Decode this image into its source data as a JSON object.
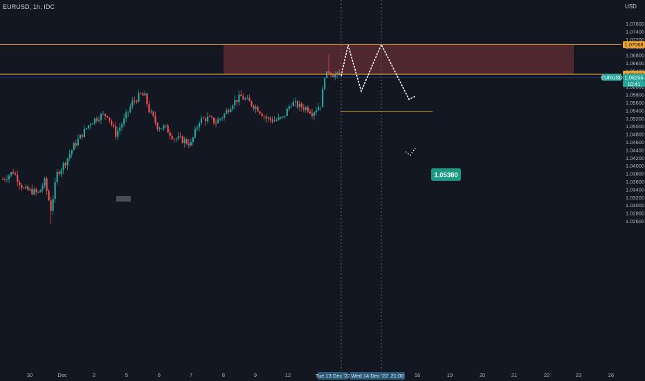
{
  "header": {
    "symbol_label": "EURUSD, 1h, IDC",
    "currency": "USD"
  },
  "chart_data": {
    "type": "candlestick",
    "symbol": "EURUSD",
    "interval": "1h",
    "source": "IDC",
    "ylim": [
      1.0255,
      1.0785
    ],
    "y_ticks": [
      "1.07600",
      "1.07400",
      "1.07200",
      "1.07000",
      "1.06800",
      "1.06600",
      "1.06400",
      "1.06200",
      "1.06000",
      "1.05800",
      "1.05600",
      "1.05400",
      "1.05200",
      "1.05000",
      "1.04800",
      "1.04600",
      "1.04400",
      "1.04200",
      "1.04000",
      "1.03800",
      "1.03600",
      "1.03400",
      "1.03200",
      "1.03000",
      "1.02800",
      "1.02600"
    ],
    "x_ticks": [
      "30",
      "Dec",
      "2",
      "5",
      "6",
      "7",
      "8",
      "9",
      "12",
      "15:",
      "16",
      "19",
      "20",
      "21",
      "22",
      "23",
      "26"
    ],
    "x_highlight": [
      "Tue 13 Dec '22",
      "Wed 14 Dec '22",
      "21:00"
    ],
    "price_levels": [
      {
        "price": 1.07068,
        "label": "1.07068",
        "color": "#f0a530"
      },
      {
        "price": 1.06317,
        "label": "1.06317",
        "color": "#f0a530"
      },
      {
        "price": 1.0538,
        "label": "1.05380",
        "color": "#c9a227"
      }
    ],
    "current_price": {
      "symbol": "EURUSD",
      "price": "1.06255",
      "countdown": "10:41",
      "color": "#26a69a"
    },
    "annotation": {
      "text": "1.05380",
      "color": "#1a9a82"
    },
    "zone": {
      "top": 1.07068,
      "bottom": 1.06317,
      "color": "#5a2a30"
    },
    "projection_path": [
      1.0628,
      1.0705,
      1.0589,
      1.07068,
      1.0568,
      1.0575
    ],
    "anchors": [
      {
        "bar": 0,
        "price": 1.0365
      },
      {
        "bar": 5,
        "price": 1.0385
      },
      {
        "bar": 10,
        "price": 1.034
      },
      {
        "bar": 14,
        "price": 1.0335
      },
      {
        "bar": 17,
        "price": 1.033
      },
      {
        "bar": 20,
        "price": 1.036
      },
      {
        "bar": 23,
        "price": 1.029
      },
      {
        "bar": 26,
        "price": 1.038
      },
      {
        "bar": 30,
        "price": 1.041
      },
      {
        "bar": 34,
        "price": 1.045
      },
      {
        "bar": 38,
        "price": 1.048
      },
      {
        "bar": 42,
        "price": 1.051
      },
      {
        "bar": 46,
        "price": 1.0525
      },
      {
        "bar": 50,
        "price": 1.053
      },
      {
        "bar": 54,
        "price": 1.048
      },
      {
        "bar": 58,
        "price": 1.0515
      },
      {
        "bar": 62,
        "price": 1.056
      },
      {
        "bar": 66,
        "price": 1.058
      },
      {
        "bar": 68,
        "price": 1.0575
      },
      {
        "bar": 70,
        "price": 1.054
      },
      {
        "bar": 74,
        "price": 1.05
      },
      {
        "bar": 78,
        "price": 1.0495
      },
      {
        "bar": 82,
        "price": 1.047
      },
      {
        "bar": 86,
        "price": 1.0465
      },
      {
        "bar": 90,
        "price": 1.0455
      },
      {
        "bar": 94,
        "price": 1.0515
      },
      {
        "bar": 98,
        "price": 1.052
      },
      {
        "bar": 102,
        "price": 1.051
      },
      {
        "bar": 106,
        "price": 1.053
      },
      {
        "bar": 110,
        "price": 1.056
      },
      {
        "bar": 114,
        "price": 1.0575
      },
      {
        "bar": 118,
        "price": 1.056
      },
      {
        "bar": 122,
        "price": 1.0545
      },
      {
        "bar": 126,
        "price": 1.052
      },
      {
        "bar": 130,
        "price": 1.0515
      },
      {
        "bar": 134,
        "price": 1.052
      },
      {
        "bar": 138,
        "price": 1.056
      },
      {
        "bar": 142,
        "price": 1.055
      },
      {
        "bar": 146,
        "price": 1.0545
      },
      {
        "bar": 148,
        "price": 1.0535
      },
      {
        "bar": 150,
        "price": 1.0545
      },
      {
        "bar": 152,
        "price": 1.0555
      },
      {
        "bar": 154,
        "price": 1.062
      },
      {
        "bar": 156,
        "price": 1.064
      },
      {
        "bar": 158,
        "price": 1.0632
      },
      {
        "bar": 160,
        "price": 1.0628
      },
      {
        "bar": 162,
        "price": 1.0625
      }
    ]
  }
}
